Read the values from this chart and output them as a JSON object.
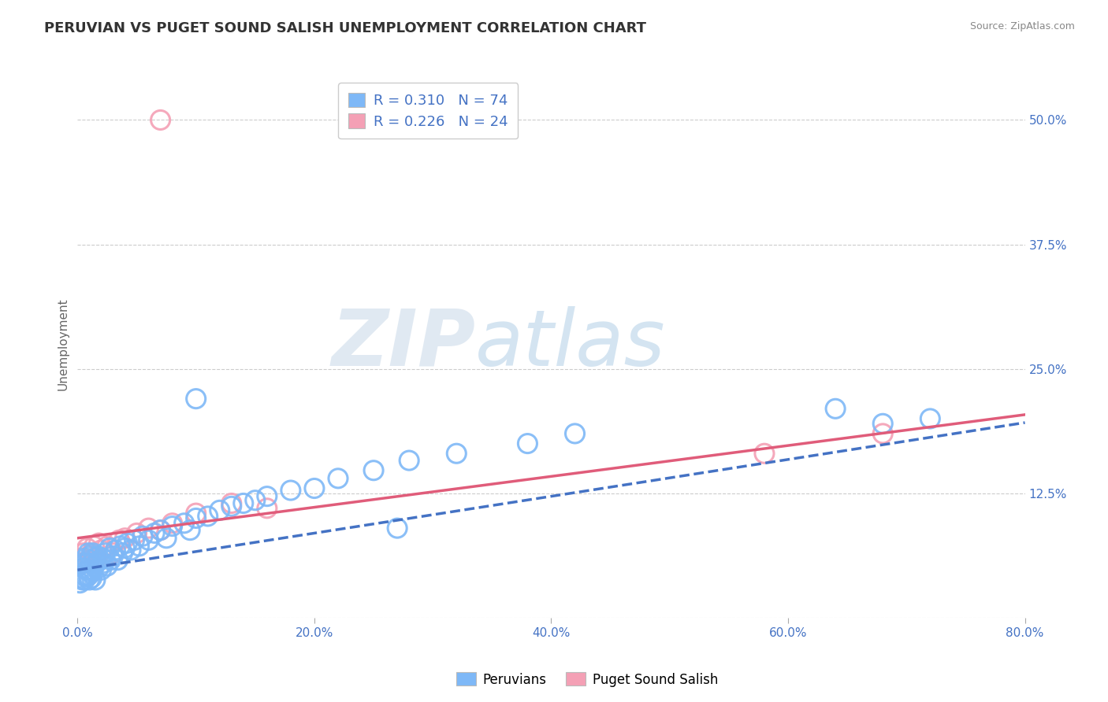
{
  "title": "PERUVIAN VS PUGET SOUND SALISH UNEMPLOYMENT CORRELATION CHART",
  "source": "Source: ZipAtlas.com",
  "ylabel": "Unemployment",
  "xlim": [
    0.0,
    0.8
  ],
  "ylim": [
    0.0,
    0.55
  ],
  "xticks": [
    0.0,
    0.2,
    0.4,
    0.6,
    0.8
  ],
  "xticklabels": [
    "0.0%",
    "20.0%",
    "40.0%",
    "60.0%",
    "80.0%"
  ],
  "yticks": [
    0.0,
    0.125,
    0.25,
    0.375,
    0.5
  ],
  "yticklabels": [
    "",
    "12.5%",
    "25.0%",
    "37.5%",
    "50.0%"
  ],
  "grid_color": "#cccccc",
  "background_color": "#ffffff",
  "blue_color": "#7EB8F7",
  "pink_color": "#F4A0B5",
  "blue_line_color": "#4472C4",
  "pink_line_color": "#E05C7A",
  "R_blue": 0.31,
  "N_blue": 74,
  "R_pink": 0.226,
  "N_pink": 24,
  "title_fontsize": 13,
  "label_fontsize": 11,
  "tick_fontsize": 11,
  "blue_intercept": 0.048,
  "blue_slope": 0.185,
  "pink_intercept": 0.08,
  "pink_slope": 0.155,
  "blue_x": [
    0.002,
    0.003,
    0.004,
    0.005,
    0.005,
    0.006,
    0.006,
    0.007,
    0.007,
    0.008,
    0.008,
    0.009,
    0.009,
    0.01,
    0.01,
    0.01,
    0.011,
    0.011,
    0.012,
    0.012,
    0.013,
    0.013,
    0.014,
    0.015,
    0.015,
    0.016,
    0.017,
    0.018,
    0.019,
    0.02,
    0.021,
    0.022,
    0.023,
    0.025,
    0.027,
    0.028,
    0.03,
    0.032,
    0.034,
    0.036,
    0.038,
    0.04,
    0.042,
    0.045,
    0.048,
    0.052,
    0.055,
    0.06,
    0.065,
    0.07,
    0.075,
    0.08,
    0.09,
    0.095,
    0.1,
    0.11,
    0.12,
    0.13,
    0.14,
    0.15,
    0.16,
    0.18,
    0.2,
    0.22,
    0.25,
    0.28,
    0.32,
    0.38,
    0.42,
    0.1,
    0.27,
    0.64,
    0.68,
    0.72
  ],
  "blue_y": [
    0.035,
    0.04,
    0.038,
    0.042,
    0.05,
    0.038,
    0.055,
    0.042,
    0.06,
    0.048,
    0.055,
    0.042,
    0.065,
    0.038,
    0.048,
    0.058,
    0.045,
    0.062,
    0.04,
    0.055,
    0.048,
    0.065,
    0.052,
    0.038,
    0.06,
    0.055,
    0.062,
    0.05,
    0.058,
    0.048,
    0.06,
    0.055,
    0.065,
    0.052,
    0.07,
    0.058,
    0.062,
    0.068,
    0.058,
    0.072,
    0.065,
    0.07,
    0.075,
    0.068,
    0.078,
    0.072,
    0.082,
    0.078,
    0.085,
    0.088,
    0.08,
    0.092,
    0.095,
    0.088,
    0.1,
    0.102,
    0.108,
    0.112,
    0.115,
    0.118,
    0.122,
    0.128,
    0.13,
    0.14,
    0.148,
    0.158,
    0.165,
    0.175,
    0.185,
    0.22,
    0.09,
    0.21,
    0.195,
    0.2
  ],
  "pink_x": [
    0.002,
    0.004,
    0.005,
    0.006,
    0.008,
    0.01,
    0.012,
    0.014,
    0.016,
    0.018,
    0.02,
    0.025,
    0.03,
    0.035,
    0.04,
    0.05,
    0.06,
    0.07,
    0.08,
    0.1,
    0.13,
    0.16,
    0.58,
    0.68
  ],
  "pink_y": [
    0.055,
    0.06,
    0.065,
    0.055,
    0.07,
    0.058,
    0.065,
    0.072,
    0.06,
    0.075,
    0.068,
    0.072,
    0.065,
    0.078,
    0.08,
    0.085,
    0.09,
    0.088,
    0.095,
    0.105,
    0.115,
    0.11,
    0.165,
    0.185
  ],
  "pink_top_x": [
    0.07
  ],
  "pink_top_y": [
    0.5
  ]
}
